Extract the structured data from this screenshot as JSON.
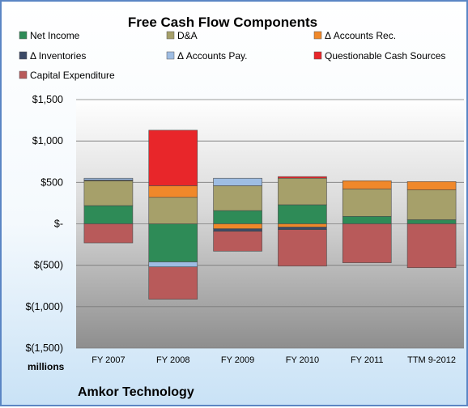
{
  "chart_data": {
    "type": "bar",
    "stacked": true,
    "title": "Free Cash Flow Components",
    "units_label": "millions",
    "company_label": "Amkor Technology",
    "categories": [
      "FY 2007",
      "FY 2008",
      "FY 2009",
      "FY 2010",
      "FY 2011",
      "TTM 9-2012"
    ],
    "ylim": [
      -1500,
      1500
    ],
    "yticks": [
      1500,
      1000,
      500,
      0,
      -500,
      -1000,
      -1500
    ],
    "ytick_labels": [
      "$1,500",
      "$1,000",
      "$500",
      "$-",
      "$(500)",
      "$(1,000)",
      "$(1,500)"
    ],
    "grid": true,
    "legend_position": "top",
    "series": [
      {
        "name": "Net Income",
        "color": "#2e8b57",
        "values": [
          220,
          -460,
          160,
          230,
          90,
          50
        ]
      },
      {
        "name": "D&A",
        "color": "#a6a06a",
        "values": [
          300,
          320,
          300,
          320,
          330,
          360
        ]
      },
      {
        "name": "Δ Accounts Rec.",
        "color": "#f0882a",
        "values": [
          0,
          140,
          -60,
          -40,
          100,
          100
        ]
      },
      {
        "name": "Δ Inventories",
        "color": "#3b4a66",
        "values": [
          10,
          0,
          -30,
          -30,
          0,
          0
        ]
      },
      {
        "name": "Δ Accounts Pay.",
        "color": "#9ebde3",
        "values": [
          20,
          -60,
          90,
          0,
          0,
          0
        ]
      },
      {
        "name": "Questionable Cash Sources",
        "color": "#e8262a",
        "values": [
          0,
          670,
          0,
          20,
          0,
          0
        ]
      },
      {
        "name": "Capital Expenditure",
        "color": "#b85a5a",
        "values": [
          -230,
          -390,
          -240,
          -440,
          -470,
          -530
        ]
      }
    ]
  }
}
